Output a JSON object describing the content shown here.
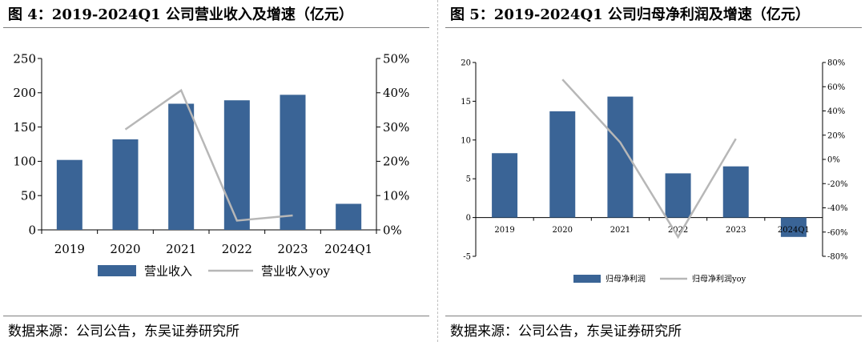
{
  "left": {
    "title": "图 4：2019-2024Q1 公司营业收入及增速（亿元）",
    "source": "数据来源：公司公告，东吴证券研究所"
  },
  "right": {
    "title": "图 5：2019-2024Q1 公司归母净利润及增速（亿元）",
    "source": "数据来源：公司公告，东吴证券研究所"
  },
  "colors": {
    "bar": "#3a6496",
    "line": "#b7b7b7",
    "axis": "#000000"
  },
  "chart_data": [
    {
      "type": "bar",
      "categories": [
        "2019",
        "2020",
        "2021",
        "2022",
        "2023",
        "2024Q1"
      ],
      "series": [
        {
          "name": "营业收入",
          "type": "bar",
          "axis": "left",
          "values": [
            102,
            132,
            184,
            189,
            197,
            38
          ]
        },
        {
          "name": "营业收入yoy",
          "type": "line",
          "axis": "right",
          "values": [
            null,
            0.293,
            0.407,
            0.027,
            0.042,
            null
          ]
        }
      ],
      "y_left": {
        "min": 0,
        "max": 250,
        "step": 50,
        "tick_labels": [
          "0",
          "50",
          "100",
          "150",
          "200",
          "250"
        ]
      },
      "y_right": {
        "min": 0,
        "max": 0.5,
        "step": 0.1,
        "tick_labels": [
          "0%",
          "10%",
          "20%",
          "30%",
          "40%",
          "50%"
        ]
      },
      "legend": "bottom"
    },
    {
      "type": "bar",
      "categories": [
        "2019",
        "2020",
        "2021",
        "2022",
        "2023",
        "2024Q1"
      ],
      "series": [
        {
          "name": "归母净利润",
          "type": "bar",
          "axis": "left",
          "values": [
            8.3,
            13.7,
            15.6,
            5.7,
            6.6,
            -2.5
          ]
        },
        {
          "name": "归母净利润yoy",
          "type": "line",
          "axis": "right",
          "values": [
            null,
            0.66,
            0.14,
            -0.64,
            0.17,
            null
          ]
        }
      ],
      "y_left": {
        "min": -5,
        "max": 20,
        "step": 5,
        "tick_labels": [
          "-5",
          "0",
          "5",
          "10",
          "15",
          "20"
        ]
      },
      "y_right": {
        "min": -0.8,
        "max": 0.8,
        "step": 0.2,
        "tick_labels": [
          "-80%",
          "-60%",
          "-40%",
          "-20%",
          "0%",
          "20%",
          "40%",
          "60%",
          "80%"
        ]
      },
      "legend": "bottom"
    }
  ]
}
